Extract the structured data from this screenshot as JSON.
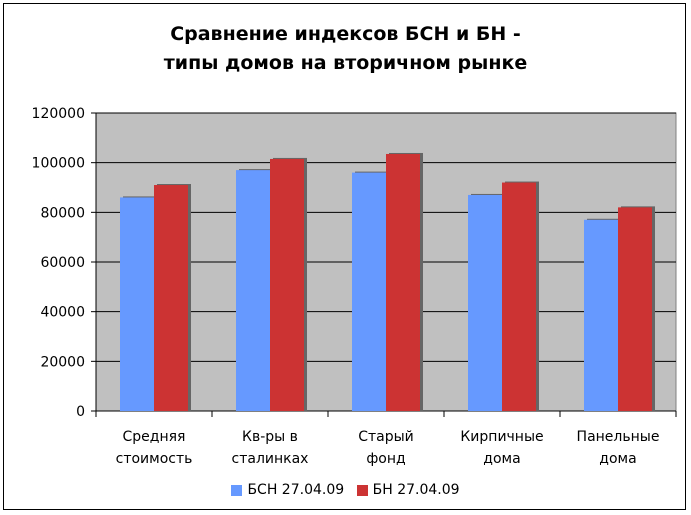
{
  "chart_data": {
    "type": "bar",
    "title_lines": [
      "Сравнение индексов БСН и БН -",
      "типы домов на вторичном рынке"
    ],
    "categories": [
      [
        "Средняя",
        "стоимость"
      ],
      [
        "Кв-ры в",
        "сталинках"
      ],
      [
        "Старый",
        "фонд"
      ],
      [
        "Кирпичные",
        "дома"
      ],
      [
        "Панельные",
        "дома"
      ]
    ],
    "series": [
      {
        "name": "БСН 27.04.09",
        "color": "#6699ff",
        "values": [
          86000,
          97000,
          96000,
          87000,
          77000
        ]
      },
      {
        "name": "БН 27.04.09",
        "color": "#cc3333",
        "values": [
          91000,
          101500,
          103500,
          92000,
          82000
        ]
      }
    ],
    "ylim": [
      0,
      120000
    ],
    "yticks": [
      0,
      20000,
      40000,
      60000,
      80000,
      100000,
      120000
    ],
    "grid": true,
    "plot_background": "#c0c0c0",
    "legend_position": "bottom"
  }
}
